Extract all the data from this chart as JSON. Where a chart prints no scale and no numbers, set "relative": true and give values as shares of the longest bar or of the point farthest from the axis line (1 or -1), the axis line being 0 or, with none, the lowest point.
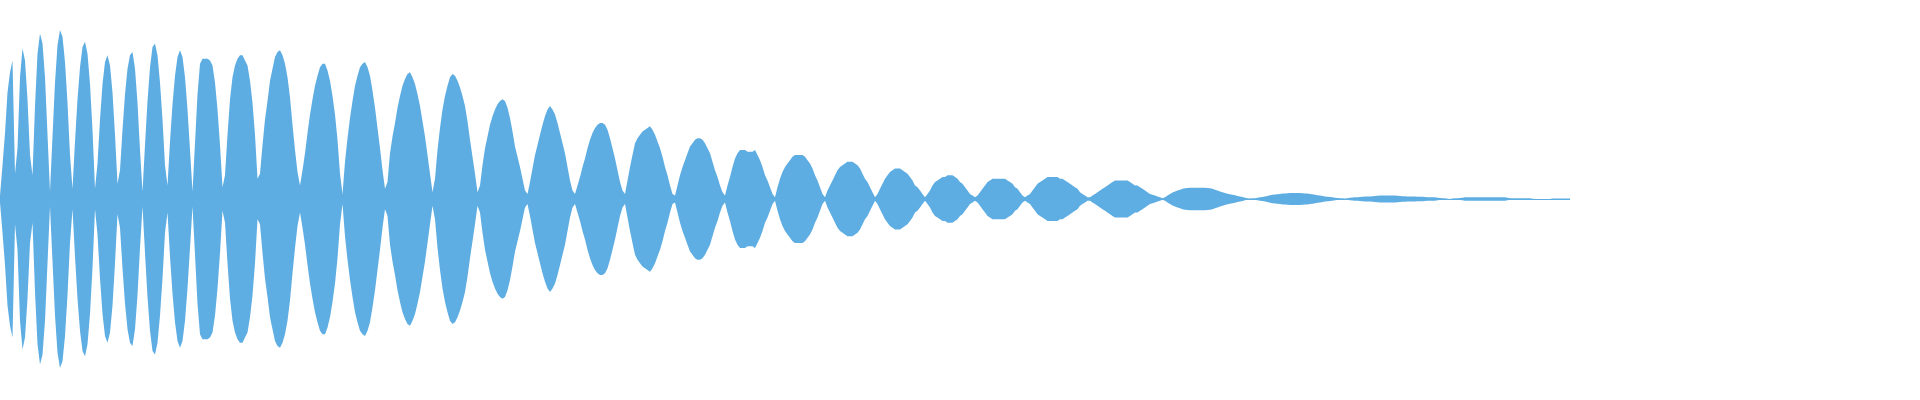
{
  "chart_data": {
    "type": "area",
    "relative": true,
    "categories": [
      null,
      null,
      null,
      null,
      null,
      null,
      null,
      null,
      null,
      null,
      null,
      null,
      null,
      null,
      null,
      null,
      null,
      null,
      null,
      null,
      null,
      null,
      null,
      null,
      null,
      null,
      null,
      null,
      null,
      null,
      null,
      null,
      null,
      null,
      null,
      null,
      null,
      null,
      null,
      null,
      null,
      null,
      null,
      null,
      null,
      null,
      null,
      null,
      null,
      null,
      null,
      null,
      null,
      null,
      null,
      null,
      null,
      null,
      null,
      null,
      null,
      null,
      null,
      null,
      null,
      null,
      null,
      null,
      null,
      null,
      null,
      null,
      null,
      null,
      null,
      null,
      null,
      null,
      null,
      null,
      null,
      null,
      null,
      null,
      null,
      null,
      null,
      null,
      null,
      null,
      null,
      null,
      null,
      null,
      null,
      null,
      null,
      null,
      null,
      null,
      null,
      null,
      null,
      null,
      null,
      null,
      null,
      null,
      null,
      null,
      null,
      null,
      null,
      null,
      null,
      null,
      null,
      null,
      null,
      null,
      null,
      null,
      null,
      null,
      null,
      null,
      null,
      null,
      null,
      null,
      null,
      null,
      null,
      null,
      null,
      null,
      null,
      null,
      null,
      null,
      null,
      null,
      null,
      null,
      null,
      null,
      null,
      null,
      null,
      null,
      null,
      null,
      null,
      null,
      null,
      null,
      null,
      null,
      null,
      null,
      null,
      null,
      null,
      null,
      null,
      null,
      null,
      null,
      null,
      null,
      null,
      null,
      null,
      null,
      null,
      null,
      null,
      null,
      null,
      null,
      null,
      null,
      null,
      null,
      null,
      null,
      null,
      null,
      null,
      null,
      null,
      null,
      null,
      null,
      null,
      null,
      null,
      null,
      null,
      null,
      null,
      null,
      null,
      null,
      null,
      null,
      null,
      null,
      null,
      null,
      null,
      null,
      null,
      null,
      null,
      null,
      null,
      null,
      null,
      null,
      null,
      null,
      null,
      null,
      null,
      null,
      null,
      null,
      null,
      null,
      null,
      null,
      null,
      null,
      null,
      null,
      null,
      null,
      null,
      null,
      null,
      null,
      null,
      null,
      null,
      null,
      null,
      null,
      null,
      null,
      null,
      null,
      null,
      null,
      null,
      null,
      null,
      null,
      null,
      null,
      null,
      null,
      null,
      null,
      null,
      null,
      null,
      null,
      null,
      null,
      null,
      null,
      null,
      null,
      null,
      null,
      null,
      null,
      null,
      null,
      null,
      null,
      null,
      null,
      null,
      null,
      null,
      null,
      null,
      null,
      null,
      null,
      null,
      null,
      null,
      null,
      null,
      null,
      null,
      null,
      null,
      null,
      null,
      null,
      null,
      null,
      null,
      null,
      null,
      null,
      null,
      null,
      null,
      null,
      null,
      null,
      null,
      null,
      null,
      null,
      null,
      null,
      null,
      null,
      null,
      null,
      null,
      null,
      null,
      null,
      null,
      null,
      null,
      null,
      null,
      null,
      null,
      null,
      null,
      null,
      null,
      null,
      null,
      null,
      null,
      null,
      null,
      null,
      null,
      null,
      null,
      null,
      null,
      null,
      null,
      null,
      null,
      null,
      null,
      null,
      null,
      null,
      null,
      null,
      null,
      null,
      null,
      null,
      null,
      null,
      null,
      null,
      null,
      null,
      null,
      null,
      null,
      null,
      null,
      null,
      null,
      null,
      null,
      null,
      null,
      null,
      null,
      null,
      null,
      null,
      null,
      null,
      null,
      null,
      null,
      null,
      null,
      null,
      null,
      null,
      null,
      null,
      null,
      null,
      null,
      null,
      null,
      null,
      null,
      null,
      null,
      null,
      null,
      null,
      null,
      null,
      null,
      null,
      null,
      null,
      null,
      null,
      null,
      null,
      null,
      null,
      null,
      null,
      null,
      null,
      null,
      null,
      null,
      null,
      null,
      null,
      null,
      null,
      null,
      null,
      null,
      null,
      null,
      null,
      null,
      null,
      null,
      null,
      null,
      null,
      null,
      null,
      null,
      null,
      null,
      null,
      null,
      null,
      null,
      null,
      null,
      null,
      null,
      null,
      null,
      null,
      null,
      null,
      null,
      null,
      null,
      null,
      null,
      null,
      null,
      null,
      null,
      null,
      null,
      null,
      null,
      null,
      null,
      null,
      null,
      null,
      null,
      null,
      null,
      null,
      null,
      null,
      null,
      null,
      null,
      null,
      null,
      null,
      null,
      null,
      null,
      null,
      null,
      null,
      null,
      null,
      null,
      null,
      null,
      null,
      null,
      null,
      null,
      null,
      null,
      null,
      null,
      null,
      null,
      null,
      null,
      null,
      null,
      null,
      null,
      null,
      null,
      null,
      null,
      null,
      null,
      null,
      null,
      null,
      null,
      null,
      null,
      null,
      null,
      null,
      null,
      null,
      null,
      null,
      null,
      null,
      null,
      null,
      null,
      null,
      null,
      null,
      null,
      null,
      null,
      null,
      null,
      null,
      null,
      null,
      null,
      null,
      null,
      null,
      null,
      null,
      null,
      null,
      null,
      null,
      null,
      null,
      null,
      null,
      null,
      null,
      null,
      null,
      null,
      null,
      null,
      null,
      null,
      null,
      null,
      null,
      null,
      null,
      null,
      null,
      null,
      null,
      null,
      null,
      null,
      null,
      null,
      null,
      null,
      null,
      null,
      null,
      null,
      null,
      null,
      null,
      null,
      null,
      null,
      null,
      null,
      null,
      null,
      null,
      null,
      null,
      null,
      null,
      null,
      null,
      null,
      null,
      null,
      null,
      null,
      null,
      null,
      null,
      null
    ],
    "series": [
      {
        "color": "#5dade2",
        "values": [
          0.02,
          0.2,
          0.39,
          0.63,
          0.75,
          0.82,
          0.15,
          0.3,
          0.72,
          0.89,
          0.82,
          0.59,
          0.26,
          0.14,
          0.55,
          0.86,
          0.98,
          0.92,
          0.72,
          0.38,
          0.045,
          0.37,
          0.69,
          0.91,
          1,
          0.96,
          0.81,
          0.57,
          0.26,
          0.06,
          0.34,
          0.59,
          0.78,
          0.9,
          0.93,
          0.86,
          0.68,
          0.41,
          0.06,
          0.21,
          0.47,
          0.68,
          0.81,
          0.85,
          0.79,
          0.63,
          0.38,
          0.09,
          0.17,
          0.41,
          0.62,
          0.77,
          0.85,
          0.87,
          0.77,
          0.57,
          0.29,
          0.045,
          0.32,
          0.58,
          0.78,
          0.9,
          0.92,
          0.85,
          0.69,
          0.47,
          0.2,
          0.08,
          0.34,
          0.56,
          0.73,
          0.84,
          0.88,
          0.84,
          0.72,
          0.53,
          0.29,
          0.045,
          0.33,
          0.62,
          0.8,
          0.83,
          0.83,
          0.83,
          0.82,
          0.79,
          0.69,
          0.53,
          0.32,
          0.07,
          0.14,
          0.38,
          0.59,
          0.72,
          0.79,
          0.83,
          0.85,
          0.85,
          0.82,
          0.79,
          0.7,
          0.57,
          0.38,
          0.12,
          0.15,
          0.32,
          0.47,
          0.58,
          0.7,
          0.77,
          0.84,
          0.87,
          0.88,
          0.85,
          0.8,
          0.72,
          0.6,
          0.44,
          0.29,
          0.16,
          0.08,
          0.17,
          0.27,
          0.39,
          0.5,
          0.59,
          0.67,
          0.73,
          0.78,
          0.8,
          0.8,
          0.76,
          0.7,
          0.61,
          0.5,
          0.35,
          0.15,
          0.03,
          0.22,
          0.36,
          0.48,
          0.58,
          0.67,
          0.73,
          0.78,
          0.8,
          0.81,
          0.78,
          0.73,
          0.64,
          0.54,
          0.42,
          0.3,
          0.17,
          0.06,
          0.1,
          0.27,
          0.37,
          0.45,
          0.54,
          0.61,
          0.67,
          0.71,
          0.74,
          0.75,
          0.72,
          0.68,
          0.62,
          0.55,
          0.46,
          0.37,
          0.26,
          0.15,
          0.04,
          0.12,
          0.29,
          0.42,
          0.53,
          0.61,
          0.67,
          0.72,
          0.74,
          0.73,
          0.7,
          0.66,
          0.61,
          0.55,
          0.46,
          0.35,
          0.25,
          0.15,
          0.04,
          0.08,
          0.2,
          0.3,
          0.37,
          0.44,
          0.49,
          0.53,
          0.56,
          0.58,
          0.59,
          0.58,
          0.54,
          0.48,
          0.4,
          0.31,
          0.25,
          0.19,
          0.12,
          0.05,
          0.03,
          0.1,
          0.18,
          0.26,
          0.32,
          0.38,
          0.44,
          0.49,
          0.53,
          0.55,
          0.53,
          0.5,
          0.45,
          0.39,
          0.33,
          0.27,
          0.19,
          0.11,
          0.05,
          0.03,
          0.08,
          0.13,
          0.19,
          0.24,
          0.3,
          0.35,
          0.39,
          0.42,
          0.44,
          0.45,
          0.45,
          0.44,
          0.41,
          0.36,
          0.3,
          0.24,
          0.17,
          0.1,
          0.05,
          0.03,
          0.11,
          0.19,
          0.26,
          0.33,
          0.36,
          0.38,
          0.4,
          0.41,
          0.42,
          0.43,
          0.41,
          0.38,
          0.34,
          0.3,
          0.25,
          0.19,
          0.14,
          0.08,
          0.03,
          0.02,
          0.08,
          0.14,
          0.19,
          0.23,
          0.27,
          0.31,
          0.33,
          0.35,
          0.36,
          0.36,
          0.35,
          0.33,
          0.3,
          0.27,
          0.22,
          0.17,
          0.13,
          0.08,
          0.04,
          0.02,
          0.08,
          0.13,
          0.19,
          0.24,
          0.27,
          0.29,
          0.29,
          0.29,
          0.28,
          0.28,
          0.28,
          0.29,
          0.26,
          0.23,
          0.19,
          0.14,
          0.11,
          0.07,
          0.03,
          0.01,
          0.07,
          0.12,
          0.16,
          0.19,
          0.21,
          0.23,
          0.25,
          0.26,
          0.26,
          0.26,
          0.26,
          0.25,
          0.23,
          0.21,
          0.18,
          0.14,
          0.11,
          0.07,
          0.03,
          0.01,
          0.05,
          0.08,
          0.11,
          0.14,
          0.17,
          0.19,
          0.2,
          0.21,
          0.22,
          0.22,
          0.22,
          0.21,
          0.2,
          0.18,
          0.15,
          0.12,
          0.1,
          0.07,
          0.04,
          0.01,
          0.03,
          0.06,
          0.09,
          0.12,
          0.14,
          0.16,
          0.17,
          0.18,
          0.18,
          0.18,
          0.17,
          0.16,
          0.15,
          0.13,
          0.11,
          0.08,
          0.07,
          0.05,
          0.03,
          0.01,
          0.03,
          0.05,
          0.08,
          0.1,
          0.11,
          0.12,
          0.13,
          0.13,
          0.14,
          0.14,
          0.14,
          0.13,
          0.12,
          0.1,
          0.09,
          0.07,
          0.05,
          0.03,
          0.02,
          0.01,
          0.02,
          0.04,
          0.06,
          0.08,
          0.1,
          0.11,
          0.12,
          0.12,
          0.12,
          0.12,
          0.12,
          0.12,
          0.11,
          0.1,
          0.09,
          0.07,
          0.06,
          0.04,
          0.02,
          0.01,
          0.02,
          0.03,
          0.05,
          0.07,
          0.09,
          0.1,
          0.11,
          0.12,
          0.13,
          0.13,
          0.13,
          0.13,
          0.13,
          0.12,
          0.12,
          0.11,
          0.1,
          0.09,
          0.08,
          0.07,
          0.06,
          0.04,
          0.03,
          0.02,
          0.01,
          0.01,
          0.02,
          0.03,
          0.04,
          0.05,
          0.06,
          0.07,
          0.08,
          0.09,
          0.1,
          0.11,
          0.11,
          0.11,
          0.11,
          0.11,
          0.11,
          0.1,
          0.09,
          0.08,
          0.08,
          0.07,
          0.06,
          0.05,
          0.04,
          0.03,
          0.025,
          0.02,
          0.015,
          0.01,
          0.005,
          0.01,
          0.02,
          0.03,
          0.038,
          0.045,
          0.05,
          0.055,
          0.06,
          0.063,
          0.065,
          0.066,
          0.066,
          0.066,
          0.066,
          0.066,
          0.066,
          0.066,
          0.065,
          0.063,
          0.06,
          0.055,
          0.05,
          0.045,
          0.04,
          0.035,
          0.031,
          0.028,
          0.025,
          0.022,
          0.018,
          0.015,
          0.012,
          0.008,
          0.005,
          0.003,
          0.004,
          0.005,
          0.008,
          0.01,
          0.012,
          0.015,
          0.018,
          0.022,
          0.025,
          0.027,
          0.028,
          0.03,
          0.032,
          0.033,
          0.034,
          0.035,
          0.035,
          0.035,
          0.035,
          0.035,
          0.034,
          0.033,
          0.032,
          0.03,
          0.028,
          0.025,
          0.022,
          0.02,
          0.018,
          0.015,
          0.013,
          0.012,
          0.01,
          0.008,
          0.006,
          0.005,
          0.004,
          0.003,
          0.005,
          0.008,
          0.009,
          0.01,
          0.011,
          0.012,
          0.013,
          0.015,
          0.015,
          0.015,
          0.016,
          0.018,
          0.019,
          0.02,
          0.02,
          0.02,
          0.02,
          0.02,
          0.02,
          0.02,
          0.019,
          0.018,
          0.017,
          0.016,
          0.015,
          0.015,
          0.015,
          0.015,
          0.014,
          0.014,
          0.013,
          0.012,
          0.011,
          0.01,
          0.01,
          0.01,
          0.008,
          0.006,
          0.005,
          0.004,
          0.002,
          0,
          0.003,
          0.005,
          0.005,
          0.006,
          0.008,
          0.01,
          0.01,
          0.01,
          0.01,
          0.01,
          0.01,
          0.01,
          0.01,
          0.01,
          0.01,
          0.01,
          0.01,
          0.01,
          0.01,
          0.01,
          0.01,
          0.01,
          0.008,
          0.005,
          0.005,
          0.005,
          0.005,
          0.005,
          0.005,
          0.005,
          0.005,
          0.005,
          0.002,
          0,
          0,
          0,
          0,
          0,
          0,
          0,
          0.003,
          0.003,
          0.003,
          0.003,
          0.003,
          0.003,
          0.003,
          0.003
        ]
      },
      {
        "color": "#5eaee3",
        "values": [
          -0.02,
          -0.2,
          -0.39,
          -0.63,
          -0.75,
          -0.82,
          -0.15,
          -0.3,
          -0.72,
          -0.89,
          -0.82,
          -0.59,
          -0.26,
          -0.14,
          -0.55,
          -0.86,
          -0.98,
          -0.92,
          -0.72,
          -0.38,
          -0.045,
          -0.37,
          -0.69,
          -0.91,
          -1,
          -0.96,
          -0.81,
          -0.57,
          -0.26,
          -0.06,
          -0.34,
          -0.59,
          -0.78,
          -0.9,
          -0.93,
          -0.86,
          -0.68,
          -0.41,
          -0.06,
          -0.21,
          -0.47,
          -0.68,
          -0.81,
          -0.85,
          -0.79,
          -0.63,
          -0.38,
          -0.09,
          -0.17,
          -0.41,
          -0.62,
          -0.77,
          -0.85,
          -0.87,
          -0.77,
          -0.57,
          -0.29,
          -0.045,
          -0.32,
          -0.58,
          -0.78,
          -0.9,
          -0.92,
          -0.85,
          -0.69,
          -0.47,
          -0.2,
          -0.08,
          -0.34,
          -0.56,
          -0.73,
          -0.84,
          -0.88,
          -0.84,
          -0.72,
          -0.53,
          -0.29,
          -0.045,
          -0.33,
          -0.62,
          -0.8,
          -0.83,
          -0.83,
          -0.83,
          -0.82,
          -0.79,
          -0.69,
          -0.53,
          -0.32,
          -0.07,
          -0.14,
          -0.38,
          -0.59,
          -0.72,
          -0.79,
          -0.83,
          -0.85,
          -0.85,
          -0.82,
          -0.79,
          -0.7,
          -0.57,
          -0.38,
          -0.12,
          -0.15,
          -0.32,
          -0.47,
          -0.58,
          -0.7,
          -0.77,
          -0.84,
          -0.87,
          -0.88,
          -0.85,
          -0.8,
          -0.72,
          -0.6,
          -0.44,
          -0.29,
          -0.16,
          -0.08,
          -0.17,
          -0.27,
          -0.39,
          -0.5,
          -0.59,
          -0.67,
          -0.73,
          -0.78,
          -0.8,
          -0.8,
          -0.76,
          -0.7,
          -0.61,
          -0.5,
          -0.35,
          -0.15,
          -0.03,
          -0.22,
          -0.36,
          -0.48,
          -0.58,
          -0.67,
          -0.73,
          -0.78,
          -0.8,
          -0.81,
          -0.78,
          -0.73,
          -0.64,
          -0.54,
          -0.42,
          -0.3,
          -0.17,
          -0.06,
          -0.1,
          -0.27,
          -0.37,
          -0.45,
          -0.54,
          -0.61,
          -0.67,
          -0.71,
          -0.74,
          -0.75,
          -0.72,
          -0.68,
          -0.62,
          -0.55,
          -0.46,
          -0.37,
          -0.26,
          -0.15,
          -0.04,
          -0.12,
          -0.29,
          -0.42,
          -0.53,
          -0.61,
          -0.67,
          -0.72,
          -0.74,
          -0.73,
          -0.7,
          -0.66,
          -0.61,
          -0.55,
          -0.46,
          -0.35,
          -0.25,
          -0.15,
          -0.04,
          -0.08,
          -0.2,
          -0.3,
          -0.37,
          -0.44,
          -0.49,
          -0.53,
          -0.56,
          -0.58,
          -0.59,
          -0.58,
          -0.54,
          -0.48,
          -0.4,
          -0.31,
          -0.25,
          -0.19,
          -0.12,
          -0.05,
          -0.03,
          -0.1,
          -0.18,
          -0.26,
          -0.32,
          -0.38,
          -0.44,
          -0.49,
          -0.53,
          -0.55,
          -0.53,
          -0.5,
          -0.45,
          -0.39,
          -0.33,
          -0.27,
          -0.19,
          -0.11,
          -0.05,
          -0.03,
          -0.08,
          -0.13,
          -0.19,
          -0.24,
          -0.3,
          -0.35,
          -0.39,
          -0.42,
          -0.44,
          -0.45,
          -0.45,
          -0.44,
          -0.41,
          -0.36,
          -0.3,
          -0.24,
          -0.17,
          -0.1,
          -0.05,
          -0.03,
          -0.11,
          -0.19,
          -0.26,
          -0.33,
          -0.36,
          -0.38,
          -0.4,
          -0.41,
          -0.42,
          -0.43,
          -0.41,
          -0.38,
          -0.34,
          -0.3,
          -0.25,
          -0.19,
          -0.14,
          -0.08,
          -0.03,
          -0.02,
          -0.08,
          -0.14,
          -0.19,
          -0.23,
          -0.27,
          -0.31,
          -0.33,
          -0.35,
          -0.36,
          -0.36,
          -0.35,
          -0.33,
          -0.3,
          -0.27,
          -0.22,
          -0.17,
          -0.13,
          -0.08,
          -0.04,
          -0.02,
          -0.08,
          -0.13,
          -0.19,
          -0.24,
          -0.27,
          -0.29,
          -0.29,
          -0.29,
          -0.28,
          -0.28,
          -0.28,
          -0.29,
          -0.26,
          -0.23,
          -0.19,
          -0.14,
          -0.11,
          -0.07,
          -0.03,
          -0.01,
          -0.07,
          -0.12,
          -0.16,
          -0.19,
          -0.21,
          -0.23,
          -0.25,
          -0.26,
          -0.26,
          -0.26,
          -0.26,
          -0.25,
          -0.23,
          -0.21,
          -0.18,
          -0.14,
          -0.11,
          -0.07,
          -0.03,
          -0.01,
          -0.05,
          -0.08,
          -0.11,
          -0.14,
          -0.17,
          -0.19,
          -0.2,
          -0.21,
          -0.22,
          -0.22,
          -0.22,
          -0.21,
          -0.2,
          -0.18,
          -0.15,
          -0.12,
          -0.1,
          -0.07,
          -0.04,
          -0.01,
          -0.03,
          -0.06,
          -0.09,
          -0.12,
          -0.14,
          -0.16,
          -0.17,
          -0.18,
          -0.18,
          -0.18,
          -0.17,
          -0.16,
          -0.15,
          -0.13,
          -0.11,
          -0.08,
          -0.07,
          -0.05,
          -0.03,
          -0.01,
          -0.03,
          -0.05,
          -0.08,
          -0.1,
          -0.11,
          -0.12,
          -0.13,
          -0.13,
          -0.14,
          -0.14,
          -0.14,
          -0.13,
          -0.12,
          -0.1,
          -0.09,
          -0.07,
          -0.05,
          -0.03,
          -0.02,
          -0.01,
          -0.02,
          -0.04,
          -0.06,
          -0.08,
          -0.1,
          -0.11,
          -0.12,
          -0.12,
          -0.12,
          -0.12,
          -0.12,
          -0.12,
          -0.11,
          -0.1,
          -0.09,
          -0.07,
          -0.06,
          -0.04,
          -0.02,
          -0.01,
          -0.02,
          -0.03,
          -0.05,
          -0.07,
          -0.09,
          -0.1,
          -0.11,
          -0.12,
          -0.13,
          -0.13,
          -0.13,
          -0.13,
          -0.13,
          -0.12,
          -0.12,
          -0.11,
          -0.1,
          -0.09,
          -0.08,
          -0.07,
          -0.06,
          -0.04,
          -0.03,
          -0.02,
          -0.01,
          -0.01,
          -0.02,
          -0.03,
          -0.04,
          -0.05,
          -0.06,
          -0.07,
          -0.08,
          -0.09,
          -0.1,
          -0.11,
          -0.11,
          -0.11,
          -0.11,
          -0.11,
          -0.11,
          -0.1,
          -0.09,
          -0.08,
          -0.08,
          -0.07,
          -0.06,
          -0.05,
          -0.04,
          -0.03,
          -0.025,
          -0.02,
          -0.015,
          -0.01,
          -0.005,
          -0.01,
          -0.02,
          -0.03,
          -0.038,
          -0.045,
          -0.05,
          -0.055,
          -0.06,
          -0.063,
          -0.065,
          -0.066,
          -0.066,
          -0.066,
          -0.066,
          -0.066,
          -0.066,
          -0.066,
          -0.065,
          -0.063,
          -0.06,
          -0.055,
          -0.05,
          -0.045,
          -0.04,
          -0.035,
          -0.031,
          -0.028,
          -0.025,
          -0.022,
          -0.018,
          -0.015,
          -0.012,
          -0.008,
          -0.005,
          -0.003,
          -0.004,
          -0.005,
          -0.008,
          -0.01,
          -0.012,
          -0.015,
          -0.018,
          -0.022,
          -0.025,
          -0.027,
          -0.028,
          -0.03,
          -0.032,
          -0.033,
          -0.034,
          -0.035,
          -0.035,
          -0.035,
          -0.035,
          -0.035,
          -0.034,
          -0.033,
          -0.032,
          -0.03,
          -0.028,
          -0.025,
          -0.022,
          -0.02,
          -0.018,
          -0.015,
          -0.013,
          -0.012,
          -0.01,
          -0.008,
          -0.006,
          -0.005,
          -0.004,
          -0.003,
          -0.005,
          -0.008,
          -0.009,
          -0.01,
          -0.011,
          -0.012,
          -0.013,
          -0.015,
          -0.015,
          -0.015,
          -0.016,
          -0.018,
          -0.019,
          -0.02,
          -0.02,
          -0.02,
          -0.02,
          -0.02,
          -0.02,
          -0.02,
          -0.019,
          -0.018,
          -0.017,
          -0.016,
          -0.015,
          -0.015,
          -0.015,
          -0.015,
          -0.014,
          -0.014,
          -0.013,
          -0.012,
          -0.011,
          -0.01,
          -0.01,
          -0.01,
          -0.008,
          -0.006,
          -0.005,
          -0.004,
          -0.002,
          0,
          -0.003,
          -0.005,
          -0.005,
          -0.006,
          -0.008,
          -0.01,
          -0.01,
          -0.01,
          -0.01,
          -0.01,
          -0.01,
          -0.01,
          -0.01,
          -0.01,
          -0.01,
          -0.01,
          -0.01,
          -0.01,
          -0.01,
          -0.01,
          -0.01,
          -0.01,
          -0.008,
          -0.005,
          -0.005,
          -0.005,
          -0.005,
          -0.005,
          -0.005,
          -0.005,
          -0.005,
          -0.005,
          -0.002,
          0,
          0,
          0,
          0,
          0,
          0,
          0,
          -0.003,
          -0.003,
          -0.003,
          -0.003,
          -0.003,
          -0.003,
          -0.003,
          -0.003
        ]
      }
    ]
  }
}
